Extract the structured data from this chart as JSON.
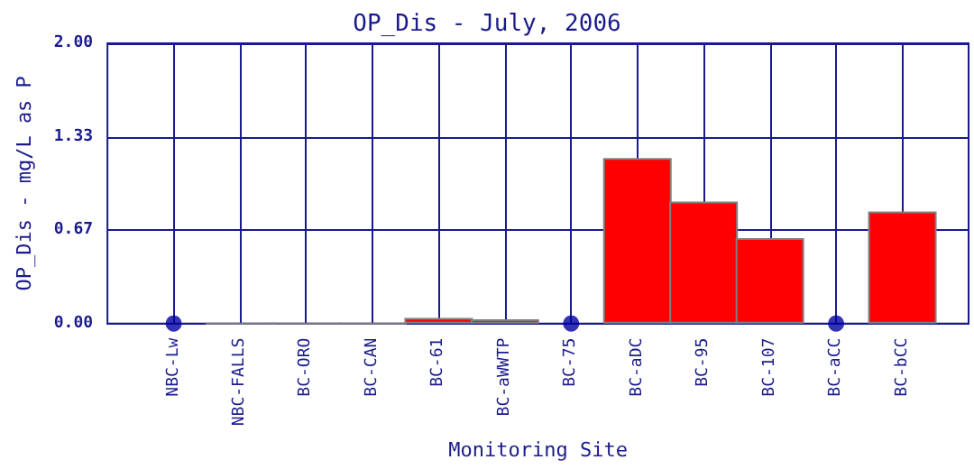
{
  "chart_data": {
    "type": "bar",
    "title": "OP_Dis - July, 2006",
    "xlabel": "Monitoring Site",
    "ylabel": "OP_Dis - mg/L as P",
    "categories": [
      "NBC-Lw",
      "NBC-FALLS",
      "BC-ORO",
      "BC-CAN",
      "BC-61",
      "BC-aWWTP",
      "BC-75",
      "BC-aDC",
      "BC-95",
      "BC-107",
      "BC-aCC",
      "BC-bCC"
    ],
    "series": [
      {
        "color": "#ff0000",
        "values": [
          null,
          0,
          0,
          0,
          0.04,
          0.03,
          null,
          1.18,
          0.87,
          0.61,
          null,
          0.8
        ]
      },
      {
        "type": "scatter",
        "color": "#0000a0",
        "x": [
          "NBC-Lw",
          "BC-75",
          "BC-aCC"
        ],
        "values": [
          0,
          0,
          0
        ]
      }
    ],
    "ylim": [
      0,
      2
    ],
    "yticks": [
      {
        "value": 0,
        "label": "0.00"
      },
      {
        "value": 0.6667,
        "label": "0.67"
      },
      {
        "value": 1.3333,
        "label": "1.33"
      },
      {
        "value": 2,
        "label": "2.00"
      }
    ],
    "grid": true,
    "marker": "circle"
  }
}
